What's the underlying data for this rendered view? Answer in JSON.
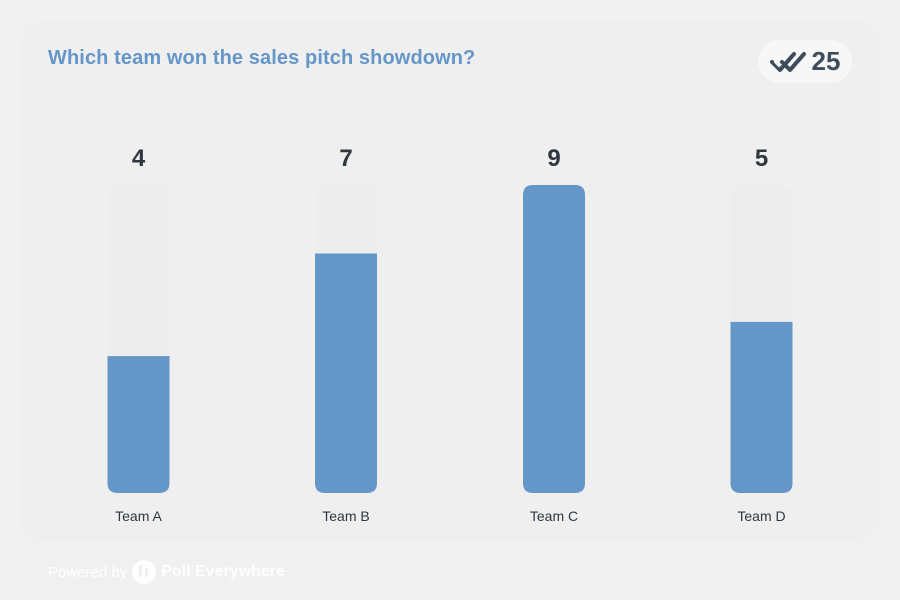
{
  "header": {
    "title": "Which team won the sales pitch showdown?",
    "response_count": "25",
    "response_icon": "double-check-icon"
  },
  "footer": {
    "powered_by": "Powered by",
    "brand": "Poll Everywhere",
    "logo_icon": "poll-everywhere-logo-icon"
  },
  "colors": {
    "bar": "#6596c8",
    "track": "#ededed",
    "title": "#6596c8",
    "value_text": "#2f3740",
    "label_text": "#2f3740",
    "badge_text": "#3e4d5c"
  },
  "chart_data": {
    "type": "bar",
    "title": "Which team won the sales pitch showdown?",
    "categories": [
      "Team A",
      "Team B",
      "Team C",
      "Team D"
    ],
    "values": [
      4,
      7,
      9,
      5
    ],
    "value_labels": [
      "4",
      "7",
      "9",
      "5"
    ],
    "ylim": [
      0,
      9
    ],
    "grid": false,
    "legend": "none"
  }
}
